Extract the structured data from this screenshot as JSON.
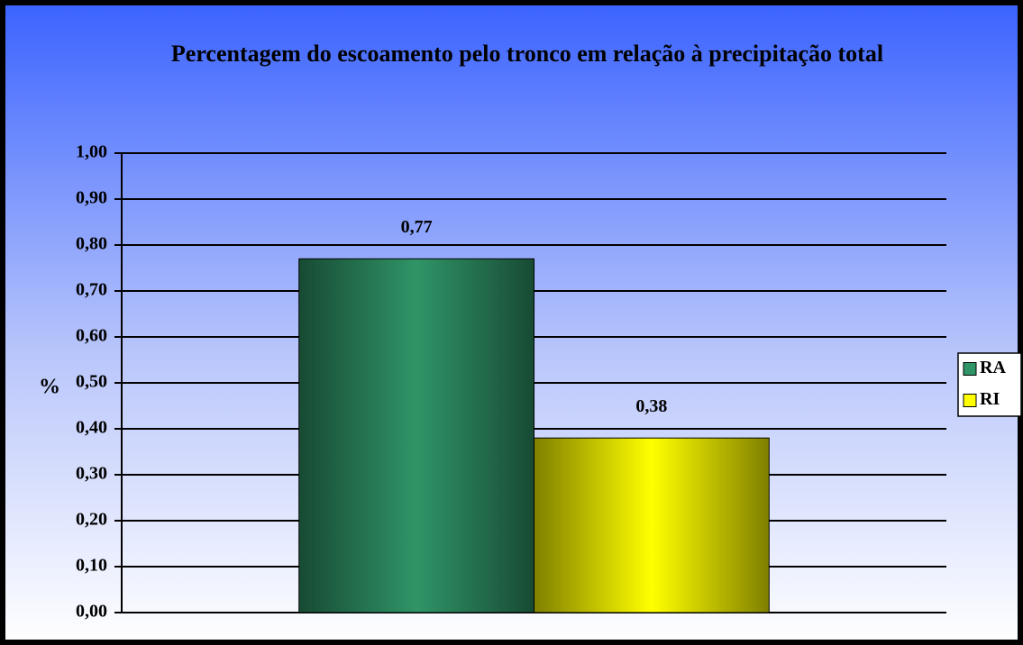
{
  "chart_data": {
    "type": "bar",
    "title": "Percentagem do escoamento pelo tronco em relação à precipitação total",
    "ylabel": "%",
    "categories": [
      null
    ],
    "series": [
      {
        "name": "RA",
        "color": "#2f9467",
        "values": [
          0.77
        ],
        "value_labels": [
          "0,77"
        ]
      },
      {
        "name": "RI",
        "color": "#ffff00",
        "values": [
          0.38
        ],
        "value_labels": [
          "0,38"
        ]
      }
    ],
    "ylim": [
      0,
      1
    ],
    "yticks": [
      {
        "value": 0,
        "label": "0,00"
      },
      {
        "value": 0.1,
        "label": "0,10"
      },
      {
        "value": 0.2,
        "label": "0,20"
      },
      {
        "value": 0.3,
        "label": "0,30"
      },
      {
        "value": 0.4,
        "label": "0,40"
      },
      {
        "value": 0.5,
        "label": "0,50"
      },
      {
        "value": 0.6,
        "label": "0,60"
      },
      {
        "value": 0.7,
        "label": "0,70"
      },
      {
        "value": 0.8,
        "label": "0,80"
      },
      {
        "value": 0.9,
        "label": "0,90"
      },
      {
        "value": 1,
        "label": "1,00"
      }
    ],
    "grid": true,
    "legend": "right"
  }
}
